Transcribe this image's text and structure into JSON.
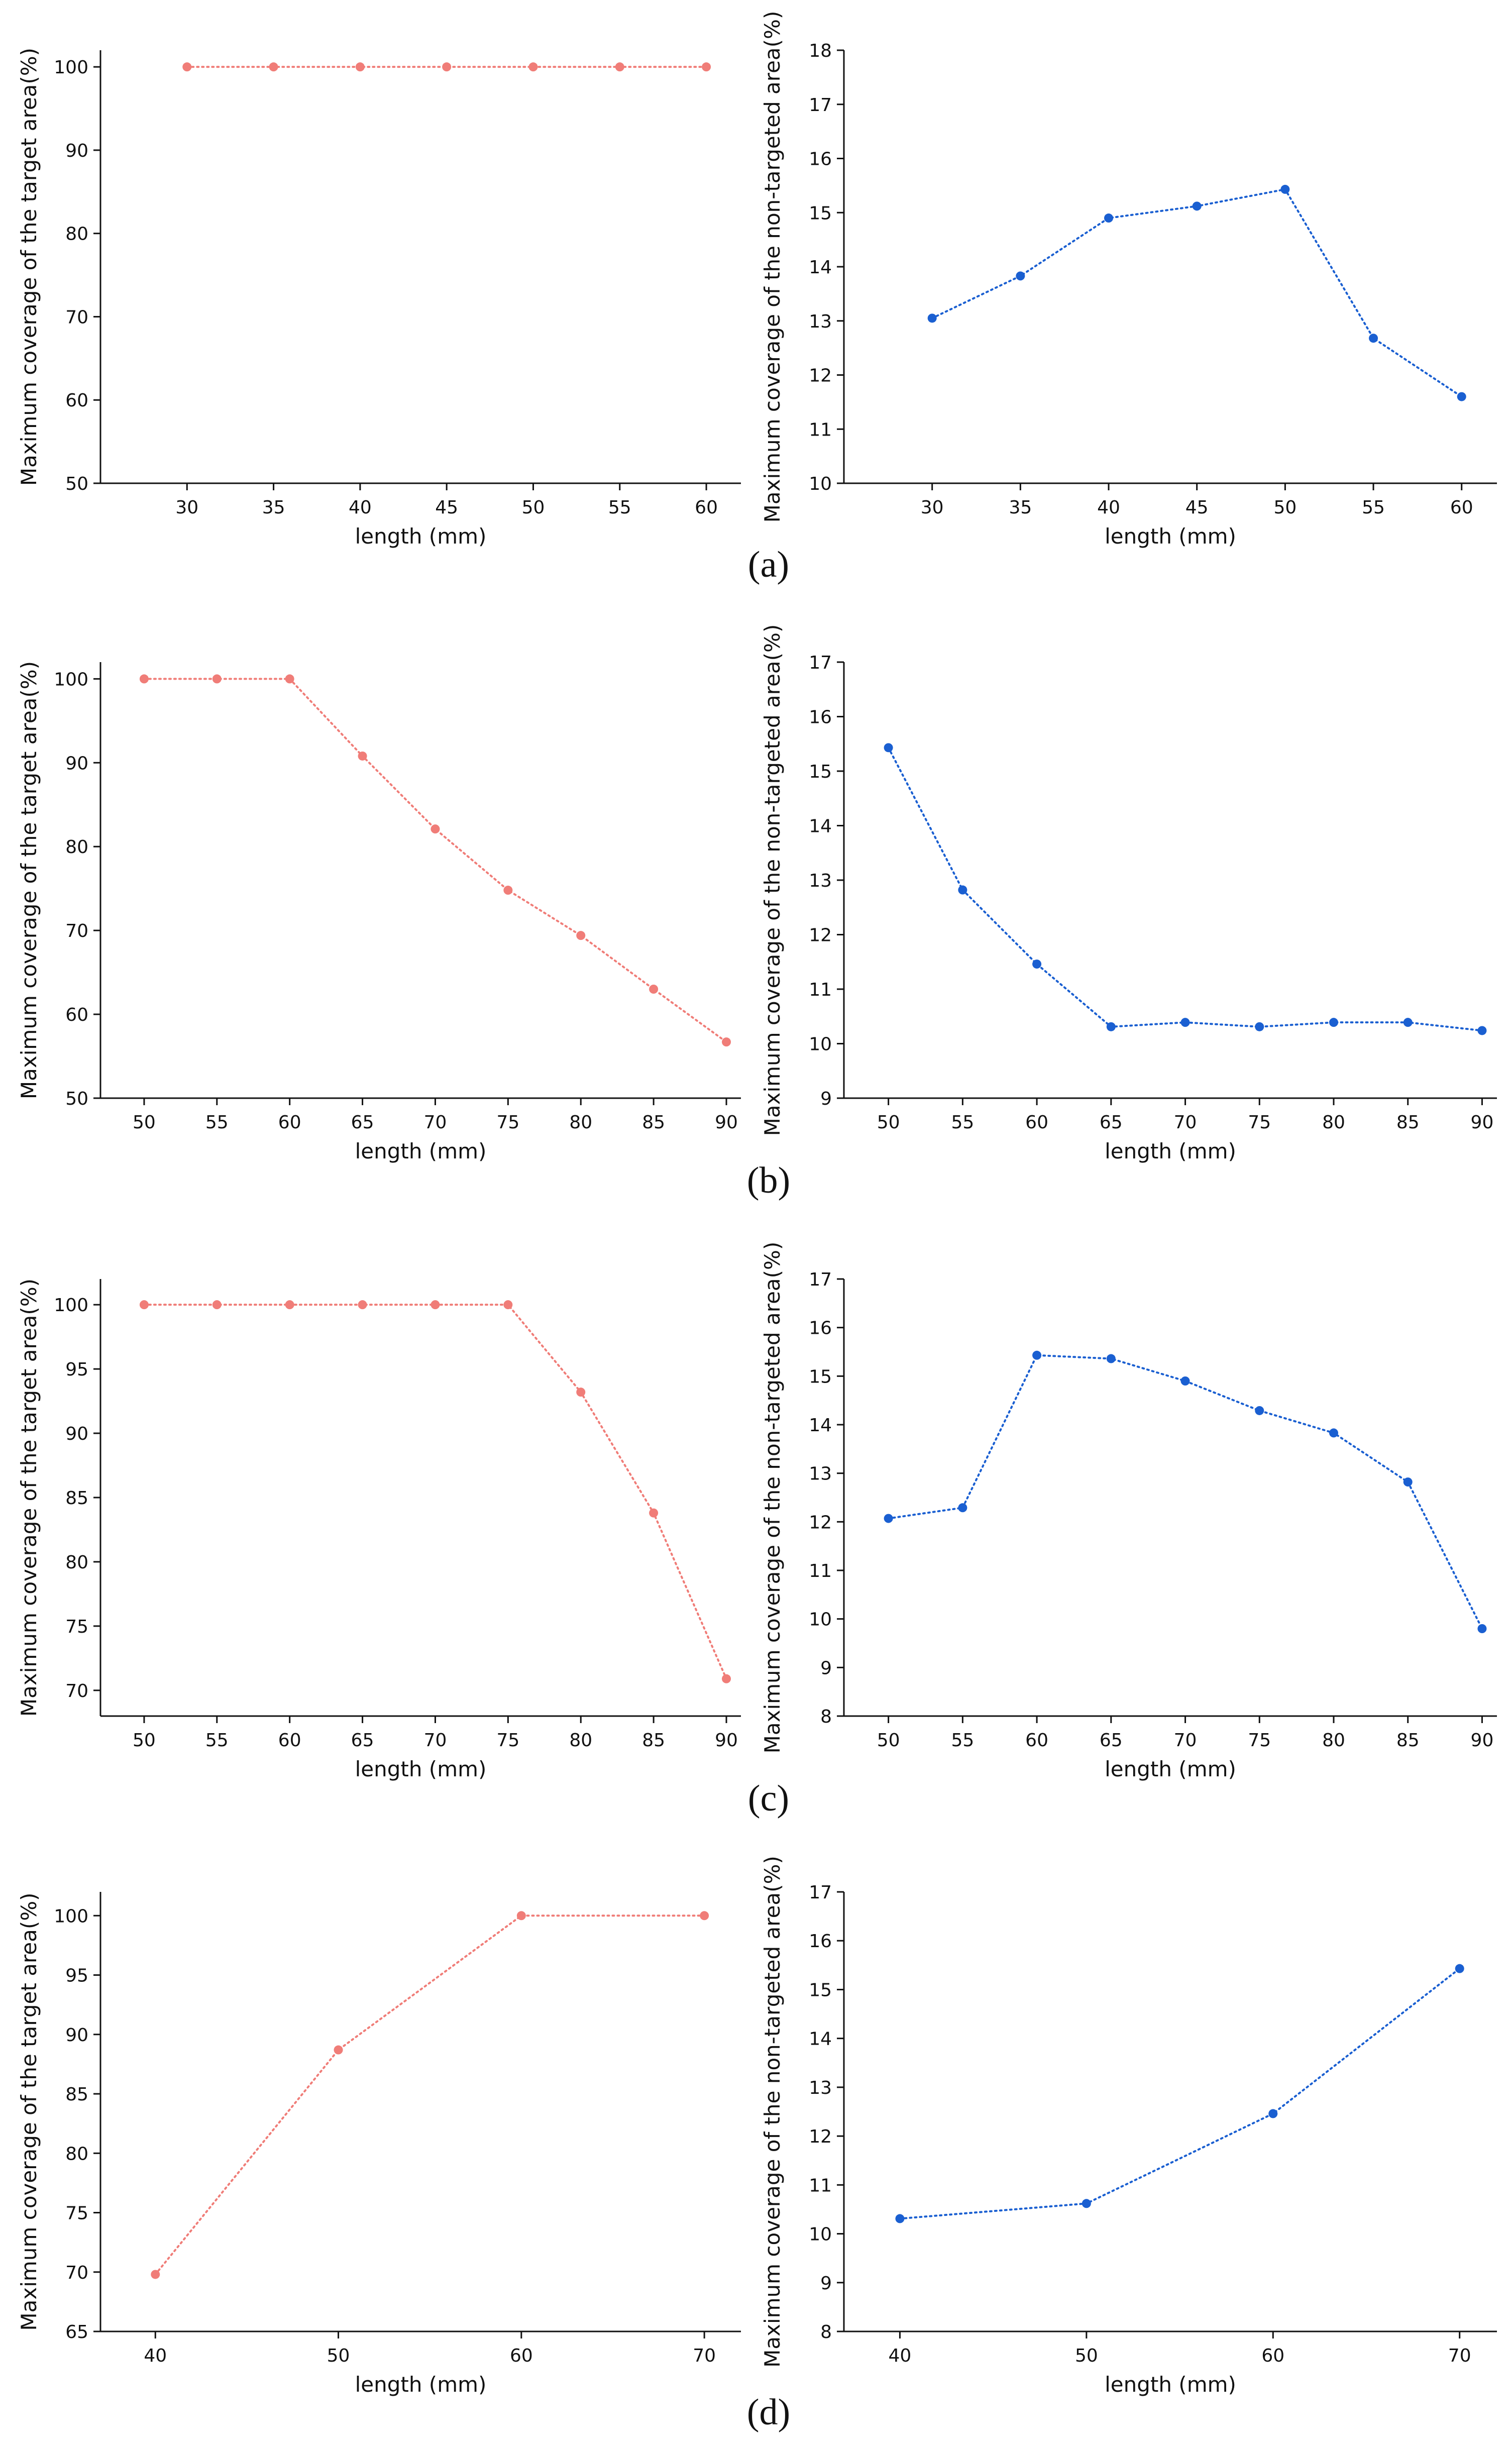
{
  "colors": {
    "target": "#f07d78",
    "nontarget": "#1a5fd1"
  },
  "chart_data": [
    {
      "type": "line",
      "title": "",
      "panel": "(a)",
      "side": "left",
      "xlabel": "length (mm)",
      "ylabel": "Maximum coverage of the target area(%)",
      "x": [
        30,
        35,
        40,
        45,
        50,
        55,
        60
      ],
      "values": [
        100,
        100,
        100,
        100,
        100,
        100,
        100
      ],
      "xlim": [
        25,
        62
      ],
      "ylim": [
        50,
        102
      ],
      "xticks": [
        30,
        35,
        40,
        45,
        50,
        55,
        60
      ],
      "yticks": [
        50,
        60,
        70,
        80,
        90,
        100
      ],
      "color": "target"
    },
    {
      "type": "line",
      "title": "",
      "panel": "(a)",
      "side": "right",
      "xlabel": "length (mm)",
      "ylabel": "Maximum coverage of the non-targeted area(%)",
      "x": [
        30,
        35,
        40,
        45,
        50,
        55,
        60
      ],
      "values": [
        13.05,
        13.83,
        14.9,
        15.12,
        15.43,
        12.68,
        11.6
      ],
      "xlim": [
        25,
        62
      ],
      "ylim": [
        10,
        18
      ],
      "xticks": [
        30,
        35,
        40,
        45,
        50,
        55,
        60
      ],
      "yticks": [
        10,
        11,
        12,
        13,
        14,
        15,
        16,
        17,
        18
      ],
      "color": "nontarget"
    },
    {
      "type": "line",
      "title": "",
      "panel": "(b)",
      "side": "left",
      "xlabel": "length (mm)",
      "ylabel": "Maximum coverage of the target area(%)",
      "x": [
        50,
        55,
        60,
        65,
        70,
        75,
        80,
        85,
        90
      ],
      "values": [
        100,
        100,
        100,
        90.8,
        82.1,
        74.8,
        69.4,
        63.0,
        56.7
      ],
      "xlim": [
        47,
        91
      ],
      "ylim": [
        50,
        102
      ],
      "xticks": [
        50,
        55,
        60,
        65,
        70,
        75,
        80,
        85,
        90
      ],
      "yticks": [
        50,
        60,
        70,
        80,
        90,
        100
      ],
      "color": "target"
    },
    {
      "type": "line",
      "title": "",
      "panel": "(b)",
      "side": "right",
      "xlabel": "length (mm)",
      "ylabel": "Maximum coverage of the non-targeted area(%)",
      "x": [
        50,
        55,
        60,
        65,
        70,
        75,
        80,
        85,
        90
      ],
      "values": [
        15.43,
        12.82,
        11.46,
        10.31,
        10.39,
        10.31,
        10.39,
        10.39,
        10.24
      ],
      "xlim": [
        47,
        91
      ],
      "ylim": [
        9,
        17
      ],
      "xticks": [
        50,
        55,
        60,
        65,
        70,
        75,
        80,
        85,
        90
      ],
      "yticks": [
        9,
        10,
        11,
        12,
        13,
        14,
        15,
        16,
        17
      ],
      "color": "nontarget"
    },
    {
      "type": "line",
      "title": "",
      "panel": "(c)",
      "side": "left",
      "xlabel": "length (mm)",
      "ylabel": "Maximum coverage of the target area(%)",
      "x": [
        50,
        55,
        60,
        65,
        70,
        75,
        80,
        85,
        90
      ],
      "values": [
        100,
        100,
        100,
        100,
        100,
        100,
        93.2,
        83.8,
        70.9
      ],
      "xlim": [
        47,
        91
      ],
      "ylim": [
        68,
        102
      ],
      "xticks": [
        50,
        55,
        60,
        65,
        70,
        75,
        80,
        85,
        90
      ],
      "yticks": [
        70,
        75,
        80,
        85,
        90,
        95,
        100
      ],
      "color": "target"
    },
    {
      "type": "line",
      "title": "",
      "panel": "(c)",
      "side": "right",
      "xlabel": "length (mm)",
      "ylabel": "Maximum coverage of the non-targeted area(%)",
      "x": [
        50,
        55,
        60,
        65,
        70,
        75,
        80,
        85,
        90
      ],
      "values": [
        12.07,
        12.29,
        15.43,
        15.36,
        14.9,
        14.29,
        13.83,
        12.82,
        9.8
      ],
      "xlim": [
        47,
        91
      ],
      "ylim": [
        8,
        17
      ],
      "xticks": [
        50,
        55,
        60,
        65,
        70,
        75,
        80,
        85,
        90
      ],
      "yticks": [
        8,
        9,
        10,
        11,
        12,
        13,
        14,
        15,
        16,
        17
      ],
      "color": "nontarget"
    },
    {
      "type": "line",
      "title": "",
      "panel": "(d)",
      "side": "left",
      "xlabel": "length (mm)",
      "ylabel": "Maximum coverage of the target area(%)",
      "x": [
        40,
        50,
        60,
        70
      ],
      "values": [
        69.8,
        88.7,
        100,
        100
      ],
      "xlim": [
        37,
        72
      ],
      "ylim": [
        65,
        102
      ],
      "xticks": [
        40,
        50,
        60,
        70
      ],
      "yticks": [
        65,
        70,
        75,
        80,
        85,
        90,
        95,
        100
      ],
      "color": "target"
    },
    {
      "type": "line",
      "title": "",
      "panel": "(d)",
      "side": "right",
      "xlabel": "length (mm)",
      "ylabel": "Maximum coverage of the non-targeted area(%)",
      "x": [
        40,
        50,
        60,
        70
      ],
      "values": [
        10.31,
        10.62,
        12.46,
        15.43
      ],
      "xlim": [
        37,
        72
      ],
      "ylim": [
        8,
        17
      ],
      "xticks": [
        40,
        50,
        60,
        70
      ],
      "yticks": [
        8,
        9,
        10,
        11,
        12,
        13,
        14,
        15,
        16,
        17
      ],
      "color": "nontarget"
    }
  ]
}
